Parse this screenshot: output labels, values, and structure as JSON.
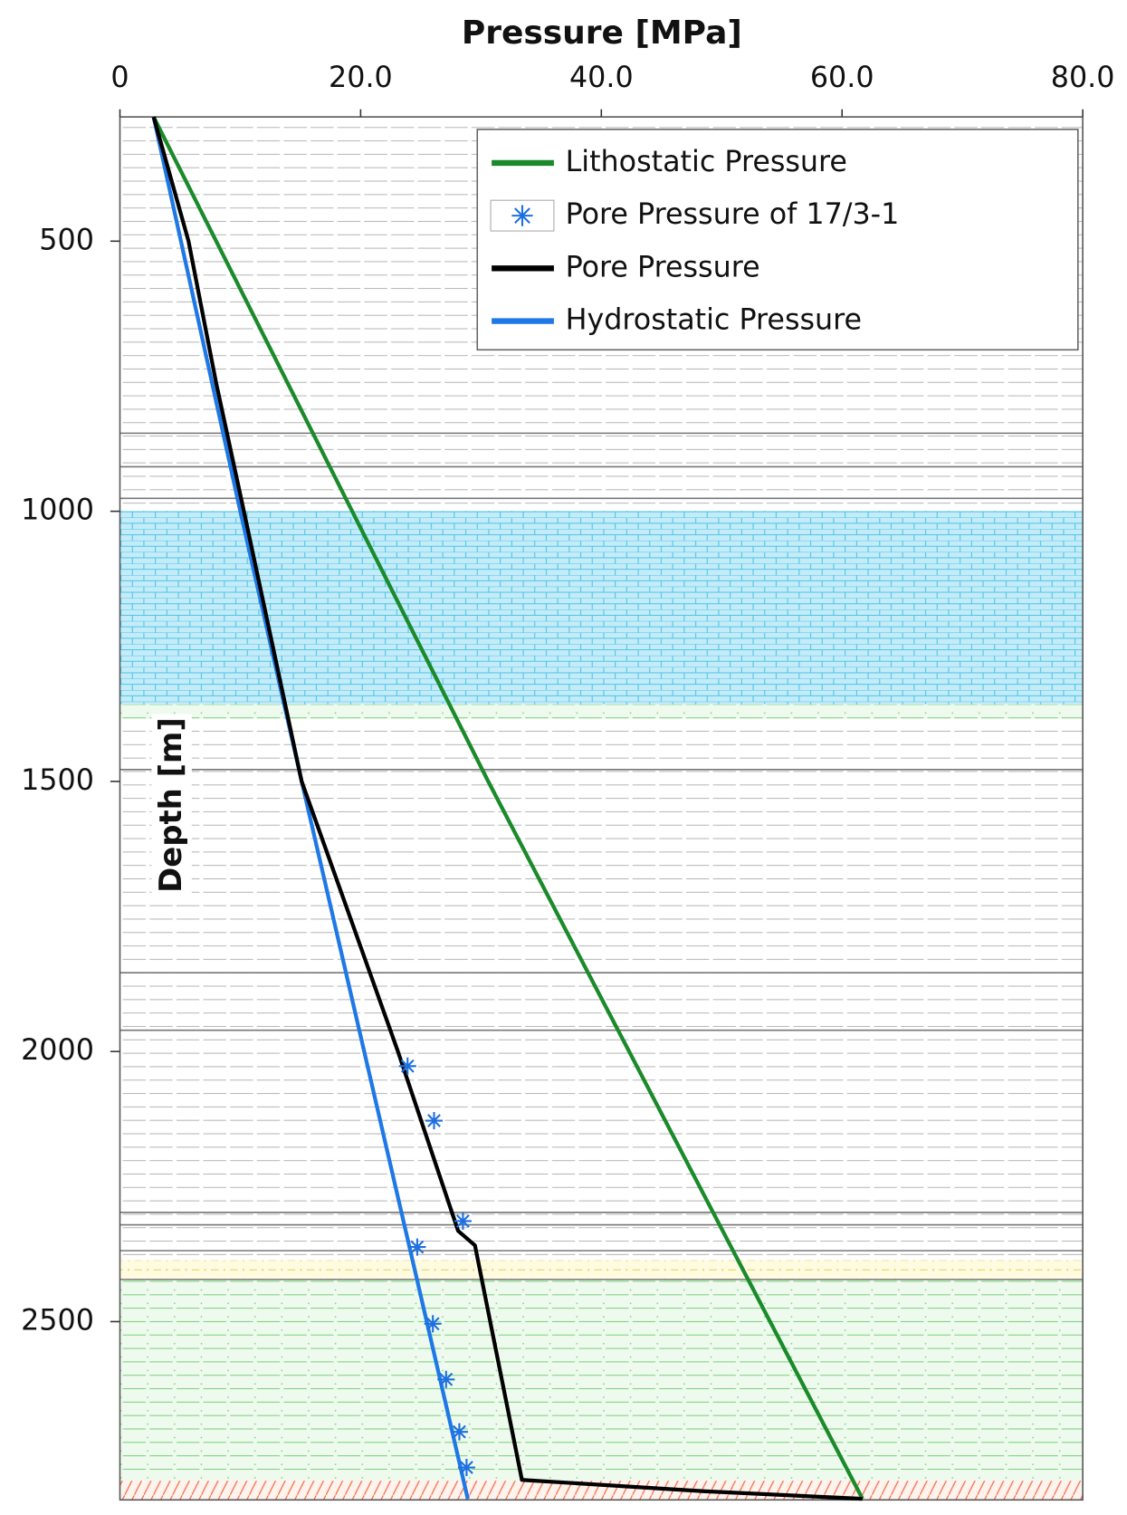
{
  "chart_data": {
    "type": "line",
    "title": "Pressure [MPa]",
    "y_label": "Depth [m]",
    "xlim": [
      0,
      80
    ],
    "xticks": [
      0,
      {
        "value": 20,
        "label": "20.0"
      },
      {
        "value": 40,
        "label": "40.0"
      },
      {
        "value": 60,
        "label": "60.0"
      },
      {
        "value": 80,
        "label": "80.0"
      }
    ],
    "ylim": [
      270,
      2830
    ],
    "y_reversed": true,
    "yticks": [
      500,
      1000,
      1500,
      2000,
      2500
    ],
    "legend": "upper right",
    "series": [
      {
        "name": "Lithostatic Pressure",
        "color": "#1a8a2a",
        "style": "line",
        "x": [
          2.8,
          30.6,
          61.7
        ],
        "y": [
          270,
          1500,
          2828
        ]
      },
      {
        "name": "Pore Pressure of 17/3-1",
        "color": "#1e6fe0",
        "style": "marker",
        "x": [
          23.9,
          26.1,
          28.5,
          24.7,
          26.0,
          27.1,
          28.2,
          28.8
        ],
        "y": [
          2027,
          2128,
          2314,
          2362,
          2504,
          2607,
          2704,
          2770
        ]
      },
      {
        "name": "Pore Pressure",
        "color": "#000000",
        "style": "line",
        "x": [
          2.8,
          5.7,
          8.0,
          10.3,
          15.1,
          23.1,
          28.1,
          29.5,
          33.4,
          48.5,
          61.7
        ],
        "y": [
          270,
          500,
          763,
          1000,
          1500,
          2000,
          2332,
          2359,
          2793,
          2814,
          2828
        ]
      },
      {
        "name": "Hydrostatic Pressure",
        "color": "#1e78e6",
        "style": "line",
        "x": [
          2.8,
          10.0,
          15.1,
          28.9
        ],
        "y": [
          270,
          1000,
          1500,
          2828
        ]
      }
    ]
  }
}
